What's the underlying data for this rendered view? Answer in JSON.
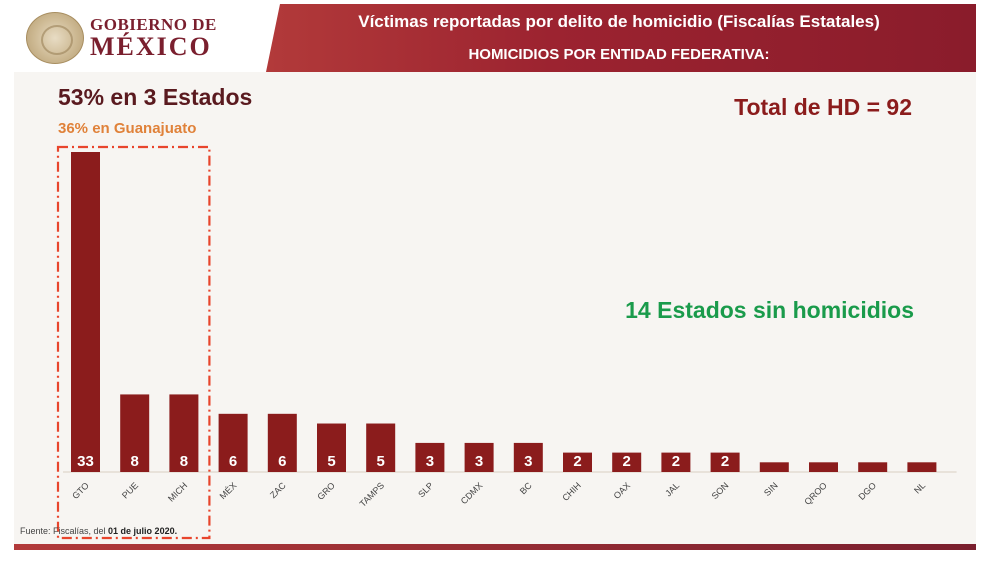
{
  "header": {
    "logo_line1": "GOBIERNO DE",
    "logo_line2": "MÉXICO",
    "title": "Víctimas reportadas por delito de homicidio (Fiscalías Estatales)",
    "subtitle": "HOMICIDIOS POR ENTIDAD FEDERATIVA:"
  },
  "annotations": {
    "headline": "53% en 3 Estados",
    "subheadline": "36% en Guanajuato",
    "total": "Total de HD = 92",
    "no_homicides": "14 Estados sin homicidios"
  },
  "footer": {
    "source_prefix": "Fuente: Fiscalías, del ",
    "source_date": "01 de julio 2020."
  },
  "colors": {
    "bar": "#8b1c1c",
    "highlight_box": "#e8452c",
    "header": "#9c2330",
    "total_text": "#8b1c1c",
    "note_text": "#1a9b4b",
    "subhead_text": "#e0823a"
  },
  "chart_data": {
    "type": "bar",
    "categories": [
      "GTO",
      "PUE",
      "MICH",
      "MÉX",
      "ZAC",
      "GRO",
      "TAMPS",
      "SLP",
      "CDMX",
      "BC",
      "CHIH",
      "OAX",
      "JAL",
      "SON",
      "SIN",
      "QROO",
      "DGO",
      "NL"
    ],
    "values": [
      33,
      8,
      8,
      6,
      6,
      5,
      5,
      3,
      3,
      3,
      2,
      2,
      2,
      2,
      1,
      1,
      1,
      1
    ],
    "data_labels": [
      "33",
      "8",
      "8",
      "6",
      "6",
      "5",
      "5",
      "3",
      "3",
      "3",
      "2",
      "2",
      "2",
      "2",
      "",
      "",
      "",
      ""
    ],
    "highlighted_categories": [
      "GTO",
      "PUE",
      "MICH"
    ],
    "ylim": [
      0,
      33
    ],
    "grid": false,
    "legend": "none"
  }
}
